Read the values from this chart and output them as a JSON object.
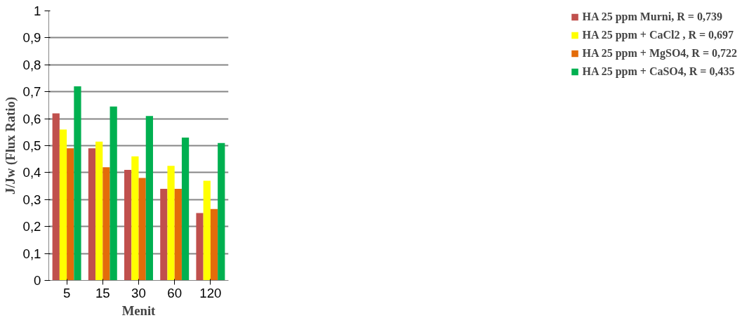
{
  "chart_data": {
    "type": "bar",
    "xlabel": "Menit",
    "ylabel": "J/Jw (Flux Ratio)",
    "categories": [
      "5",
      "15",
      "30",
      "60",
      "120"
    ],
    "series": [
      {
        "name": "HA 25 ppm Murni, R = 0,739",
        "color": "#c0504d",
        "values": [
          0.62,
          0.49,
          0.41,
          0.34,
          0.25
        ]
      },
      {
        "name": "HA 25 ppm + CaCl2 , R = 0,697",
        "color": "#ffff00",
        "values": [
          0.56,
          0.515,
          0.46,
          0.425,
          0.37
        ]
      },
      {
        "name": "HA 25 ppm + MgSO4, R = 0,722",
        "color": "#e36c0a",
        "values": [
          0.49,
          0.42,
          0.38,
          0.34,
          0.265
        ]
      },
      {
        "name": "HA 25 ppm + CaSO4, R = 0,435",
        "color": "#00b050",
        "values": [
          0.72,
          0.645,
          0.61,
          0.53,
          0.51
        ]
      }
    ],
    "ylim": [
      0,
      1
    ],
    "yticks": [
      0,
      {
        "value": 0.1,
        "label": "0,1"
      },
      {
        "value": 0.2,
        "label": "0,2"
      },
      {
        "value": 0.3,
        "label": "0,3"
      },
      {
        "value": 0.4,
        "label": "0,4"
      },
      {
        "value": 0.5,
        "label": "0,5"
      },
      {
        "value": 0.6,
        "label": "0,6"
      },
      {
        "value": 0.7,
        "label": "0,7"
      },
      {
        "value": 0.8,
        "label": "0,8"
      },
      {
        "value": 0.9,
        "label": "0,9"
      },
      1
    ],
    "grid": "y",
    "legend": "right"
  }
}
